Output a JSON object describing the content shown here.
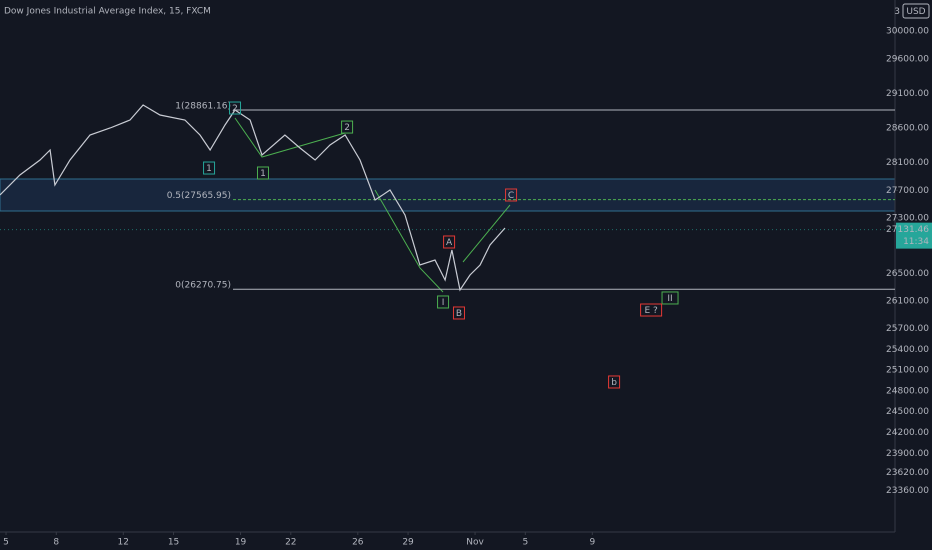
{
  "chart_data": {
    "type": "line",
    "title": "Dow Jones Industrial Average Index, 15, FXCM",
    "currency": "USD",
    "top_tick_fragment": "3",
    "color": "#c9ccd4",
    "x": [
      4.64,
      5.83,
      7.03,
      7.63,
      7.92,
      8.82,
      10.01,
      11.21,
      12.4,
      13.18,
      14.19,
      15.68,
      16.58,
      17.18,
      18.07,
      18.67,
      19.57,
      20.28,
      21.65,
      22.55,
      23.45,
      24.34,
      25.24,
      26.13,
      27.03,
      27.92,
      28.82,
      29.71,
      30.61,
      31.21,
      31.62,
      32.1,
      32.7,
      33.3,
      33.89,
      34.79
    ],
    "values": [
      27632,
      27921,
      28138,
      28282,
      27776,
      28138,
      28499,
      28600,
      28716,
      28932,
      28788,
      28716,
      28499,
      28282,
      28643,
      28860,
      28716,
      28210,
      28499,
      28311,
      28138,
      28354,
      28499,
      28138,
      27560,
      27704,
      27343,
      26620,
      26692,
      26404,
      26837,
      26259,
      26476,
      26620,
      26909,
      27155
    ],
    "xlim": [
      4.64,
      58.07
    ],
    "ylim": [
      22762,
      30450
    ],
    "xticks": [
      5,
      8,
      12,
      15,
      19,
      22,
      26,
      29,
      {
        "value": 33,
        "label": "Nov"
      },
      {
        "value": 36,
        "label": "5"
      },
      {
        "value": 40,
        "label": "9"
      }
    ],
    "yticks": [
      {
        "value": 30000,
        "label": "30000.00"
      },
      {
        "value": 29600,
        "label": "29600.00"
      },
      {
        "value": 29100,
        "label": "29100.00"
      },
      {
        "value": 28600,
        "label": "28600.00"
      },
      {
        "value": 28100,
        "label": "28100.00"
      },
      {
        "value": 27700,
        "label": "27700.00"
      },
      {
        "value": 27300,
        "label": "27300.00"
      },
      {
        "value": 26500,
        "label": "26500.00"
      },
      {
        "value": 26100,
        "label": "26100.00"
      },
      {
        "value": 25700,
        "label": "25700.00"
      },
      {
        "value": 25400,
        "label": "25400.00"
      },
      {
        "value": 25100,
        "label": "25100.00"
      },
      {
        "value": 24800,
        "label": "24800.00"
      },
      {
        "value": 24500,
        "label": "24500.00"
      },
      {
        "value": 24200,
        "label": "24200.00"
      },
      {
        "value": 23900,
        "label": "23900.00"
      },
      {
        "value": 23620,
        "label": "23620.00"
      },
      {
        "value": 23360,
        "label": "23360.00"
      }
    ],
    "last_price": {
      "value": 27131.46,
      "label": "27131.46"
    },
    "countdown": "11:34",
    "fib_levels": [
      {
        "value": 28861.16,
        "label": "1(28861.16)",
        "color": "#b2b5be"
      },
      {
        "value": 27565.95,
        "label": "0.5(27565.95)",
        "color": "#4caf50"
      },
      {
        "value": 26270.75,
        "label": "0(26270.75)",
        "color": "#b2b5be"
      }
    ],
    "wave_labels": [
      {
        "label": "1",
        "x": 17.12,
        "y": 28022,
        "color": "#26a69a"
      },
      {
        "label": "2",
        "x": 18.67,
        "y": 28889,
        "color": "#26a69a"
      },
      {
        "label": "1",
        "x": 20.34,
        "y": 27950,
        "color": "#4caf50"
      },
      {
        "label": "2",
        "x": 25.36,
        "y": 28614,
        "color": "#4caf50"
      },
      {
        "label": "I",
        "x": 31.09,
        "y": 26086,
        "color": "#4caf50"
      },
      {
        "label": "II",
        "x": 44.64,
        "y": 26144,
        "color": "#4caf50"
      },
      {
        "label": "A",
        "x": 31.45,
        "y": 26953,
        "color": "#e53935"
      },
      {
        "label": "B",
        "x": 32.04,
        "y": 25927,
        "color": "#e53935"
      },
      {
        "label": "C",
        "x": 35.15,
        "y": 27632,
        "color": "#e53935"
      },
      {
        "label": "E ?",
        "x": 43.51,
        "y": 25970,
        "color": "#e53935"
      },
      {
        "label": "b",
        "x": 41.3,
        "y": 24930,
        "color": "#e53935"
      }
    ]
  }
}
